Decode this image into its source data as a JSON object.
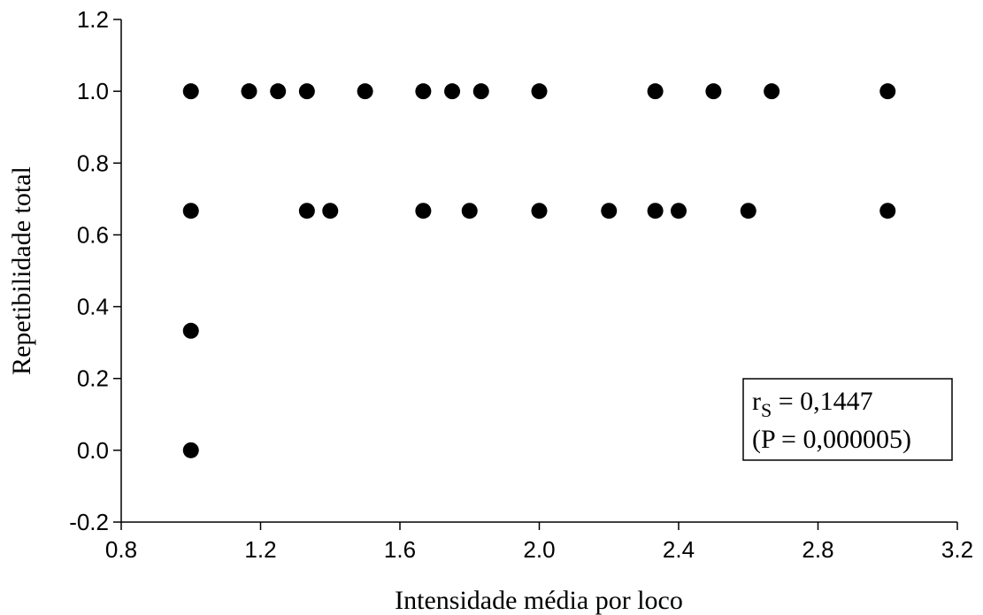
{
  "chart_data": {
    "type": "scatter",
    "xlabel": "Intensidade média por loco",
    "ylabel": "Repetibilidade total",
    "xlim": [
      0.8,
      3.2
    ],
    "ylim": [
      -0.2,
      1.2
    ],
    "xticks": [
      "0.8",
      "1.2",
      "1.6",
      "2.0",
      "2.4",
      "2.8",
      "3.2"
    ],
    "yticks": [
      "-0.2",
      "0.0",
      "0.2",
      "0.4",
      "0.6",
      "0.8",
      "1.0",
      "1.2"
    ],
    "grid": false,
    "legend": "none",
    "marker_color": "#000000",
    "points": [
      {
        "x": 1.0,
        "y": 1.0
      },
      {
        "x": 1.167,
        "y": 1.0
      },
      {
        "x": 1.25,
        "y": 1.0
      },
      {
        "x": 1.333,
        "y": 1.0
      },
      {
        "x": 1.5,
        "y": 1.0
      },
      {
        "x": 1.667,
        "y": 1.0
      },
      {
        "x": 1.75,
        "y": 1.0
      },
      {
        "x": 1.833,
        "y": 1.0
      },
      {
        "x": 2.0,
        "y": 1.0
      },
      {
        "x": 2.333,
        "y": 1.0
      },
      {
        "x": 2.5,
        "y": 1.0
      },
      {
        "x": 2.667,
        "y": 1.0
      },
      {
        "x": 3.0,
        "y": 1.0
      },
      {
        "x": 1.0,
        "y": 0.667
      },
      {
        "x": 1.333,
        "y": 0.667
      },
      {
        "x": 1.4,
        "y": 0.667
      },
      {
        "x": 1.667,
        "y": 0.667
      },
      {
        "x": 1.8,
        "y": 0.667
      },
      {
        "x": 2.0,
        "y": 0.667
      },
      {
        "x": 2.2,
        "y": 0.667
      },
      {
        "x": 2.333,
        "y": 0.667
      },
      {
        "x": 2.4,
        "y": 0.667
      },
      {
        "x": 2.6,
        "y": 0.667
      },
      {
        "x": 3.0,
        "y": 0.667
      },
      {
        "x": 1.0,
        "y": 0.333
      },
      {
        "x": 1.0,
        "y": 0.0
      }
    ],
    "annotation": {
      "rs_symbol": "r",
      "rs_sub": "S",
      "rs_text": " = 0,1447",
      "p_text": "(P = 0,000005)"
    }
  }
}
